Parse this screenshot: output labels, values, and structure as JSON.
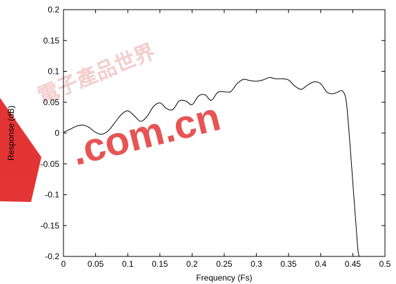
{
  "chart_data": {
    "type": "line",
    "title": "",
    "xlabel": "Frequency (Fs)",
    "ylabel": "Response (dB)",
    "xlim": [
      0,
      0.5
    ],
    "ylim": [
      -0.2,
      0.2
    ],
    "x_ticks": [
      "0",
      "0.05",
      "0.1",
      "0.15",
      "0.2",
      "0.25",
      "0.3",
      "0.35",
      "0.4",
      "0.45",
      "0.5"
    ],
    "y_ticks": [
      "0.2",
      "0.15",
      "0.1",
      "0.05",
      "0",
      "-0.05",
      "-0.1",
      "-0.15",
      "-0.2"
    ],
    "grid": false,
    "series": [
      {
        "color": "#000000",
        "x": [
          0.0,
          0.01,
          0.02,
          0.03,
          0.04,
          0.05,
          0.06,
          0.07,
          0.08,
          0.09,
          0.1,
          0.11,
          0.12,
          0.13,
          0.14,
          0.15,
          0.16,
          0.17,
          0.18,
          0.19,
          0.2,
          0.21,
          0.22,
          0.23,
          0.24,
          0.25,
          0.26,
          0.27,
          0.28,
          0.29,
          0.3,
          0.31,
          0.32,
          0.33,
          0.34,
          0.35,
          0.36,
          0.37,
          0.38,
          0.39,
          0.4,
          0.41,
          0.42,
          0.43,
          0.435,
          0.44,
          0.445,
          0.45,
          0.455,
          0.458,
          0.46
        ],
        "y": [
          0.001,
          0.006,
          0.011,
          0.013,
          0.009,
          0.001,
          -0.002,
          0.004,
          0.017,
          0.03,
          0.036,
          0.028,
          0.019,
          0.027,
          0.043,
          0.049,
          0.04,
          0.038,
          0.052,
          0.052,
          0.046,
          0.06,
          0.062,
          0.053,
          0.066,
          0.067,
          0.067,
          0.08,
          0.087,
          0.085,
          0.084,
          0.086,
          0.09,
          0.088,
          0.088,
          0.086,
          0.076,
          0.071,
          0.078,
          0.083,
          0.08,
          0.066,
          0.064,
          0.068,
          0.067,
          0.05,
          -0.01,
          -0.08,
          -0.15,
          -0.19,
          -0.2
        ]
      }
    ]
  },
  "watermark": {
    "latin": ".com.cn",
    "cjk": "電子產品世界",
    "color": "#e02020"
  }
}
